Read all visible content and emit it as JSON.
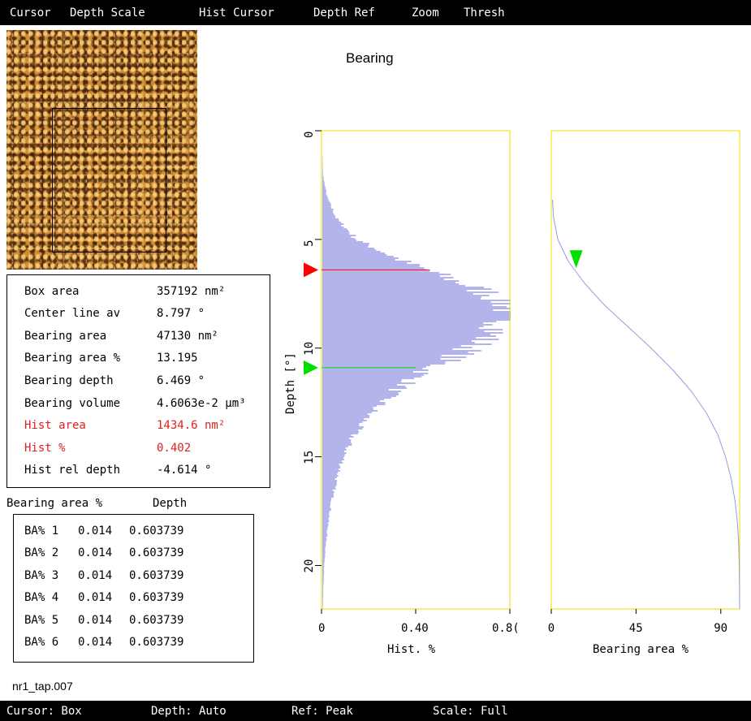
{
  "menu": [
    "Cursor",
    "Depth Scale",
    "Hist Cursor",
    "Depth Ref",
    "Zoom",
    "Thresh"
  ],
  "title": "Bearing",
  "stats": [
    {
      "label": "Box area",
      "value": "357192 nm²",
      "highlight": false
    },
    {
      "label": "Center line av",
      "value": "8.797 °",
      "highlight": false
    },
    {
      "label": "Bearing area",
      "value": "47130 nm²",
      "highlight": false
    },
    {
      "label": "Bearing area %",
      "value": "13.195",
      "highlight": false
    },
    {
      "label": "Bearing depth",
      "value": "6.469 °",
      "highlight": false
    },
    {
      "label": "Bearing volume",
      "value": "4.6063e-2 µm³",
      "highlight": false
    },
    {
      "label": "Hist area",
      "value": "1434.6 nm²",
      "highlight": true
    },
    {
      "label": "Hist %",
      "value": "0.402",
      "highlight": true
    },
    {
      "label": "Hist rel depth",
      "value": "-4.614 °",
      "highlight": false
    }
  ],
  "ba_table": {
    "headers": [
      "Bearing area %",
      "Depth"
    ],
    "rows": [
      [
        "BA% 1",
        "0.014",
        "0.603739"
      ],
      [
        "BA% 2",
        "0.014",
        "0.603739"
      ],
      [
        "BA% 3",
        "0.014",
        "0.603739"
      ],
      [
        "BA% 4",
        "0.014",
        "0.603739"
      ],
      [
        "BA% 5",
        "0.014",
        "0.603739"
      ],
      [
        "BA% 6",
        "0.014",
        "0.603739"
      ]
    ]
  },
  "filename": "nr1_tap.007",
  "status": [
    "Cursor: Box",
    "Depth: Auto",
    "Ref: Peak",
    "Scale: Full"
  ],
  "colors": {
    "histogram_fill": "#b4b4ec",
    "frame": "#e8e000",
    "red_cursor": "#ff0000",
    "green_cursor": "#00e000",
    "curve": "#9a9ae0",
    "highlight_text": "#e02020"
  },
  "chart_data": [
    {
      "type": "area",
      "title": "Bearing",
      "xlabel": "Hist. %",
      "ylabel": "Depth [°]",
      "x_ticks": [
        "0",
        "0.40",
        "0.8("
      ],
      "y_ticks": [
        "0",
        "5",
        "10",
        "15",
        "20"
      ],
      "xlim": [
        0,
        0.8
      ],
      "ylim": [
        22,
        0
      ],
      "series": [
        {
          "y": [
            2,
            3,
            4,
            5,
            6,
            7,
            7.5,
            8,
            8.5,
            9,
            10,
            11,
            12,
            13,
            14,
            15,
            16,
            17,
            18,
            19,
            20,
            21,
            22
          ],
          "x": [
            0.003,
            0.02,
            0.06,
            0.15,
            0.35,
            0.6,
            0.72,
            0.79,
            0.8,
            0.76,
            0.63,
            0.44,
            0.3,
            0.2,
            0.13,
            0.09,
            0.06,
            0.04,
            0.025,
            0.015,
            0.008,
            0.004,
            0.002
          ]
        }
      ],
      "cursors": [
        {
          "color": "red",
          "depth": 6.4,
          "hist": 0.46
        },
        {
          "color": "green",
          "depth": 10.9,
          "hist": 0.4
        }
      ]
    },
    {
      "type": "line",
      "xlabel": "Bearing area %",
      "ylabel": "",
      "x_ticks": [
        "0",
        "45",
        "90"
      ],
      "xlim": [
        0,
        100
      ],
      "ylim": [
        22,
        0
      ],
      "series": [
        {
          "y": [
            0,
            3,
            4,
            5,
            6,
            7,
            8,
            9,
            10,
            11,
            12,
            13,
            14,
            15,
            16,
            17,
            18,
            19,
            20,
            22
          ],
          "x": [
            0.2,
            0.5,
            1.2,
            3.5,
            9,
            17.5,
            28,
            40.5,
            53,
            64.5,
            74.5,
            82.5,
            88.5,
            92.5,
            95.5,
            97.5,
            98.8,
            99.5,
            99.8,
            100
          ]
        }
      ],
      "cursors": [
        {
          "color": "green",
          "depth": 6.469,
          "bearing": 13.195
        }
      ]
    }
  ]
}
